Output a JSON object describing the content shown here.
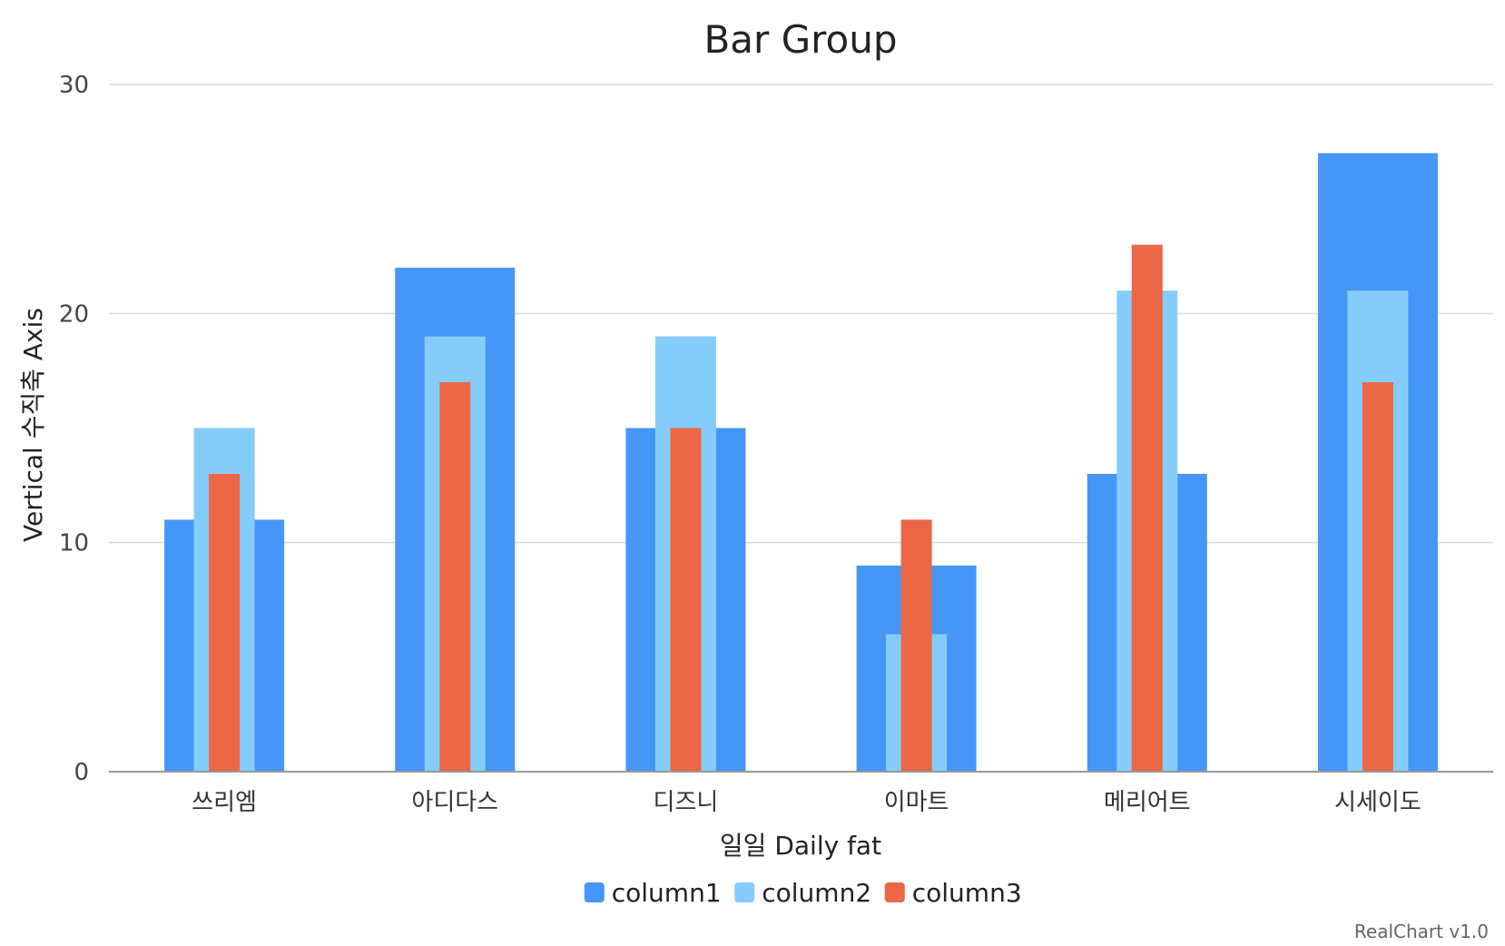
{
  "chart_data": {
    "type": "bar",
    "title": "Bar Group",
    "xlabel": "일일 Daily fat",
    "ylabel": "Vertical 수직축 Axis",
    "ylim": [
      0,
      30
    ],
    "yticks": [
      0,
      10,
      20,
      30
    ],
    "categories": [
      "쓰리엠",
      "아디다스",
      "디즈니",
      "이마트",
      "메리어트",
      "시세이도"
    ],
    "series": [
      {
        "name": "column1",
        "values": [
          11,
          22,
          15,
          9,
          13,
          27
        ]
      },
      {
        "name": "column2",
        "values": [
          15,
          19,
          19,
          6,
          21,
          21
        ]
      },
      {
        "name": "column3",
        "values": [
          13,
          17,
          15,
          11,
          23,
          17
        ]
      }
    ],
    "grid": true,
    "legend_position": "bottom",
    "layout_style": "overlapped",
    "colors": {
      "column1": "#4596F6",
      "column2": "#84CCF9",
      "column3": "#EB6745"
    }
  },
  "credit": "RealChart v1.0"
}
